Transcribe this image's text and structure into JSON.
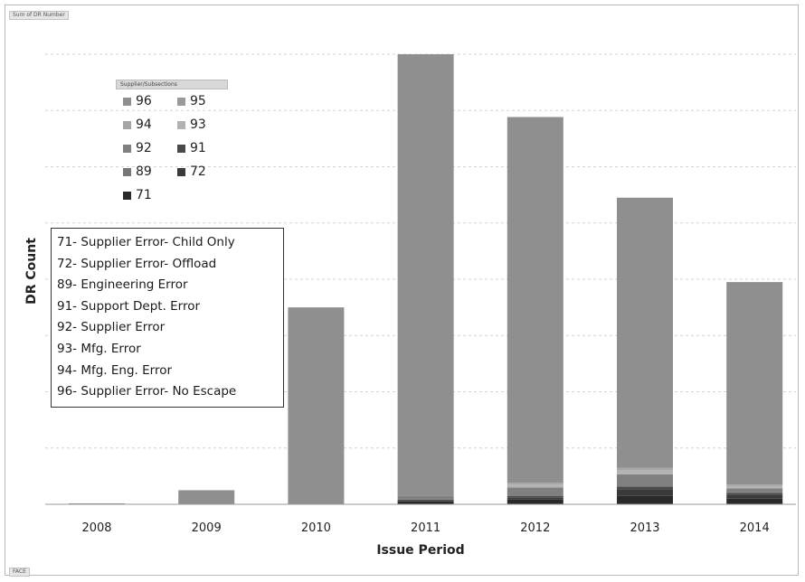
{
  "corner_chips": {
    "top_left": "Sum of DR Number",
    "bottom_left": "FACE"
  },
  "legend": {
    "title": "Supplier/Subsections",
    "items": [
      {
        "label": "96",
        "color": "#8f8f8f"
      },
      {
        "label": "95",
        "color": "#9a9a9a"
      },
      {
        "label": "94",
        "color": "#a6a6a6"
      },
      {
        "label": "93",
        "color": "#b2b2b2"
      },
      {
        "label": "92",
        "color": "#808080"
      },
      {
        "label": "91",
        "color": "#4a4a4a"
      },
      {
        "label": "89",
        "color": "#777777"
      },
      {
        "label": "72",
        "color": "#3a3a3a"
      },
      {
        "label": "71",
        "color": "#2a2a2a"
      }
    ]
  },
  "codes_box": {
    "lines": [
      "71- Supplier Error- Child Only",
      "72- Supplier Error- Offload",
      "89- Engineering Error",
      "91- Support Dept. Error",
      "92- Supplier Error",
      "93- Mfg. Error",
      "94- Mfg. Eng. Error",
      "96- Supplier Error- No Escape"
    ]
  },
  "chart_data": {
    "type": "bar",
    "stacked": true,
    "xlabel": "Issue Period",
    "ylabel": "DR Count",
    "categories": [
      "2008",
      "2009",
      "2010",
      "2011",
      "2012",
      "2013",
      "2014"
    ],
    "ylim": [
      0,
      480
    ],
    "grid": true,
    "series": [
      {
        "name": "71",
        "color": "#2a2a2a",
        "values": [
          0,
          0,
          0,
          3,
          5,
          9,
          6
        ]
      },
      {
        "name": "72",
        "color": "#3a3a3a",
        "values": [
          0,
          0,
          0,
          0,
          2,
          7,
          4
        ]
      },
      {
        "name": "89",
        "color": "#777777",
        "values": [
          0,
          0,
          0,
          0,
          0,
          0,
          0
        ]
      },
      {
        "name": "91",
        "color": "#4a4a4a",
        "values": [
          0,
          0,
          0,
          2,
          2,
          3,
          2
        ]
      },
      {
        "name": "92",
        "color": "#808080",
        "values": [
          0,
          0,
          0,
          4,
          9,
          13,
          5
        ]
      },
      {
        "name": "93",
        "color": "#b2b2b2",
        "values": [
          0,
          0,
          0,
          0,
          3,
          4,
          2
        ]
      },
      {
        "name": "94",
        "color": "#a6a6a6",
        "values": [
          0,
          0,
          0,
          0,
          2,
          3,
          2
        ]
      },
      {
        "name": "95",
        "color": "#9a9a9a",
        "values": [
          0,
          0,
          0,
          0,
          0,
          0,
          0
        ]
      },
      {
        "name": "96",
        "color": "#8f8f8f",
        "values": [
          1,
          15,
          210,
          471,
          390,
          288,
          216
        ]
      }
    ]
  }
}
